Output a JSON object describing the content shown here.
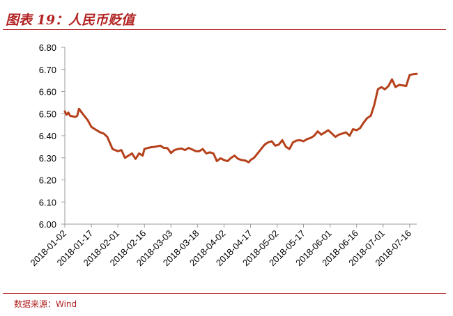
{
  "title": "图表 19：人民币贬值",
  "source": "数据来源：Wind",
  "chart_data": {
    "type": "line",
    "title": "图表 19：人民币贬值",
    "xlabel": "",
    "ylabel": "",
    "ylim": [
      6.0,
      6.8
    ],
    "yticks": [
      "6.00",
      "6.10",
      "6.20",
      "6.30",
      "6.40",
      "6.50",
      "6.60",
      "6.70",
      "6.80"
    ],
    "xticks": [
      "2018-01-02",
      "2018-01-17",
      "2018-02-01",
      "2018-02-16",
      "2018-03-03",
      "2018-03-18",
      "2018-04-02",
      "2018-04-17",
      "2018-05-02",
      "2018-05-17",
      "2018-06-01",
      "2018-06-16",
      "2018-07-01",
      "2018-07-16"
    ],
    "x_range": [
      "2018-01-02",
      "2018-07-20"
    ],
    "grid": false,
    "legend": "none",
    "line_color": "#b5401a",
    "series": [
      {
        "x": [
          "2018-01-02",
          "2018-01-03",
          "2018-01-04",
          "2018-01-05",
          "2018-01-08",
          "2018-01-09",
          "2018-01-10",
          "2018-01-12",
          "2018-01-15",
          "2018-01-17",
          "2018-01-19",
          "2018-01-22",
          "2018-01-24",
          "2018-01-26",
          "2018-01-29",
          "2018-02-01",
          "2018-02-03",
          "2018-02-05",
          "2018-02-07",
          "2018-02-09",
          "2018-02-11",
          "2018-02-13",
          "2018-02-15",
          "2018-02-16",
          "2018-02-18",
          "2018-02-20",
          "2018-02-22",
          "2018-02-25",
          "2018-02-27",
          "2018-03-01",
          "2018-03-03",
          "2018-03-05",
          "2018-03-07",
          "2018-03-09",
          "2018-03-11",
          "2018-03-13",
          "2018-03-15",
          "2018-03-17",
          "2018-03-19",
          "2018-03-21",
          "2018-03-23",
          "2018-03-25",
          "2018-03-27",
          "2018-03-29",
          "2018-03-31",
          "2018-04-02",
          "2018-04-04",
          "2018-04-06",
          "2018-04-08",
          "2018-04-10",
          "2018-04-12",
          "2018-04-14",
          "2018-04-16",
          "2018-04-17",
          "2018-04-19",
          "2018-04-21",
          "2018-04-23",
          "2018-04-25",
          "2018-04-27",
          "2018-04-29",
          "2018-05-01",
          "2018-05-03",
          "2018-05-05",
          "2018-05-07",
          "2018-05-09",
          "2018-05-11",
          "2018-05-13",
          "2018-05-15",
          "2018-05-17",
          "2018-05-19",
          "2018-05-21",
          "2018-05-23",
          "2018-05-25",
          "2018-05-27",
          "2018-05-29",
          "2018-05-31",
          "2018-06-02",
          "2018-06-04",
          "2018-06-06",
          "2018-06-08",
          "2018-06-10",
          "2018-06-12",
          "2018-06-14",
          "2018-06-16",
          "2018-06-18",
          "2018-06-20",
          "2018-06-22",
          "2018-06-24",
          "2018-06-26",
          "2018-06-28",
          "2018-06-30",
          "2018-07-02",
          "2018-07-04",
          "2018-07-06",
          "2018-07-08",
          "2018-07-10",
          "2018-07-12",
          "2018-07-14",
          "2018-07-16",
          "2018-07-18",
          "2018-07-20"
        ],
        "values": [
          6.51,
          6.495,
          6.505,
          6.49,
          6.485,
          6.49,
          6.522,
          6.5,
          6.47,
          6.44,
          6.43,
          6.415,
          6.41,
          6.395,
          6.34,
          6.33,
          6.335,
          6.3,
          6.31,
          6.32,
          6.295,
          6.32,
          6.31,
          6.34,
          6.345,
          6.348,
          6.35,
          6.355,
          6.345,
          6.344,
          6.322,
          6.335,
          6.34,
          6.342,
          6.335,
          6.345,
          6.338,
          6.33,
          6.33,
          6.34,
          6.32,
          6.325,
          6.32,
          6.285,
          6.298,
          6.29,
          6.285,
          6.3,
          6.31,
          6.295,
          6.29,
          6.288,
          6.28,
          6.29,
          6.3,
          6.32,
          6.34,
          6.36,
          6.37,
          6.375,
          6.355,
          6.36,
          6.38,
          6.35,
          6.34,
          6.37,
          6.378,
          6.38,
          6.375,
          6.385,
          6.39,
          6.4,
          6.42,
          6.405,
          6.415,
          6.425,
          6.41,
          6.395,
          6.405,
          6.41,
          6.415,
          6.4,
          6.43,
          6.425,
          6.435,
          6.46,
          6.48,
          6.49,
          6.54,
          6.61,
          6.62,
          6.61,
          6.625,
          6.655,
          6.62,
          6.63,
          6.628,
          6.625,
          6.675,
          6.678,
          6.68
        ]
      }
    ]
  }
}
